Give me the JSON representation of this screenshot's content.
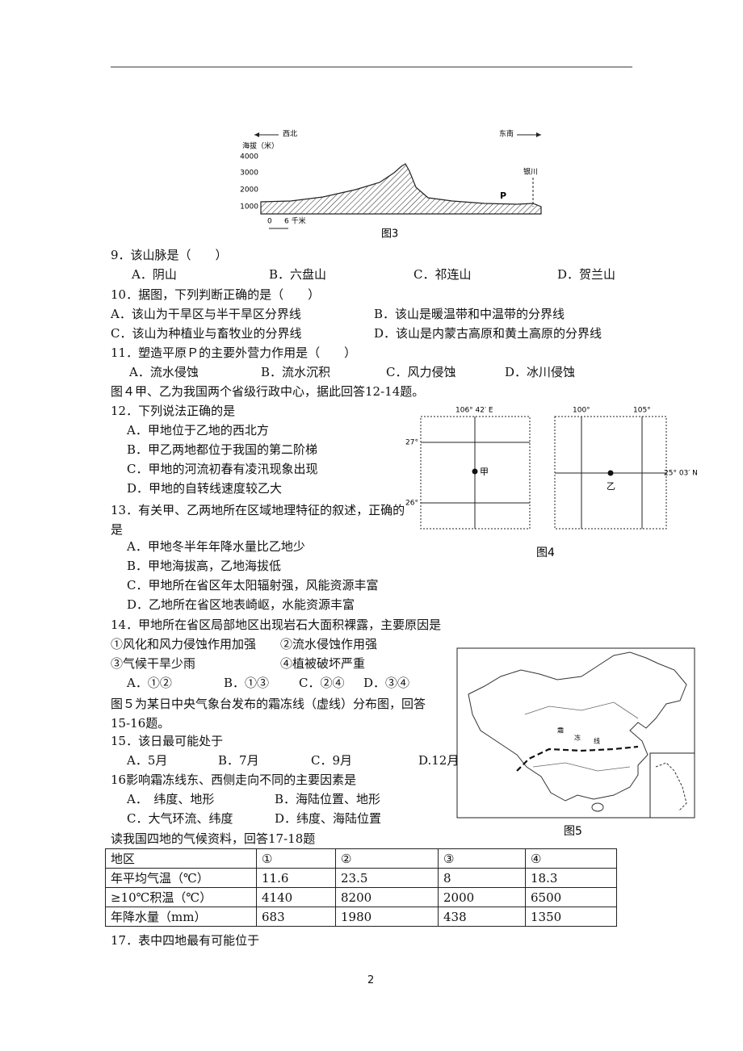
{
  "figure3": {
    "direction_left": "西北",
    "direction_right": "东南",
    "y_axis_label": "海拔（米）",
    "y_ticks": [
      "4000",
      "3000",
      "2000",
      "1000"
    ],
    "city_label": "银川",
    "plain_label": "P",
    "scale_start": "0",
    "scale_end": "6 千米",
    "caption": "图3"
  },
  "questions": [
    {
      "stem": "9．该山脉是（　　）",
      "options": [
        "A．阴山",
        "B．六盘山",
        "C．祁连山",
        "D．贺兰山"
      ]
    },
    {
      "stem": "10．据图，下列判断正确的是（　　）",
      "options": [
        "A．该山为干旱区与半干旱区分界线",
        "B．该山是暖温带和中温带的分界线",
        "C．该山为种植业与畜牧业的分界线",
        "D．该山是内蒙古高原和黄土高原的分界线"
      ]
    },
    {
      "stem": "11．塑造平原Ｐ的主要外营力作用是（　　）",
      "options": [
        "A．流水侵蚀",
        "B．流水沉积",
        "C．风力侵蚀",
        "D．冰川侵蚀"
      ]
    },
    {
      "stem": "12．下列说法正确的是",
      "options": [
        "A．甲地位于乙地的西北方",
        "B．甲乙两地都位于我国的第二阶梯",
        "C．甲地的河流初春有凌汛现象出现",
        "D．甲地的自转线速度较乙大"
      ]
    },
    {
      "stem": "13．有关甲、乙两地所在区域地理特征的叙述，正确的是",
      "options": [
        "A．甲地冬半年年降水量比乙地少",
        "B．甲地海拔高，乙地海拔低",
        "C．甲地所在省区年太阳辐射强，风能资源丰富",
        "D．乙地所在省区地表崎岖，水能资源丰富"
      ]
    },
    {
      "stem": "14．甲地所在省区局部地区出现岩石大面积裸露，主要原因是",
      "statements": [
        "①风化和风力侵蚀作用加强",
        "②流水侵蚀作用强",
        "③气候干旱少雨",
        "④植被破坏严重"
      ],
      "options": [
        "A．①②",
        "B．①③",
        "C．②④",
        "D．③④"
      ]
    },
    {
      "stem": "15．该日最可能处于",
      "options": [
        "A．5月",
        "B．7月",
        "C．9月",
        "D.12月"
      ]
    },
    {
      "stem": "16影响霜冻线东、西侧走向不同的主要因素是",
      "options": [
        "A．　纬度、地形",
        "B．海陆位置、地形",
        "C．大气环流、纬度",
        "D．纬度、海陆位置"
      ]
    },
    {
      "stem": "17．表中四地最有可能位于"
    }
  ],
  "intros": [
    "图４甲、乙为我国两个省级行政中心，据此回答12-14题。",
    "图５为某日中央气象台发布的霜冻线（虚线）分布图，回答15-16题。",
    "读我国四地的气候资料，回答17-18题"
  ],
  "figure4": {
    "left_lon": "106° 42′ E",
    "lat_27": "27°",
    "lat_26": "26°",
    "point_a": "甲",
    "lon_100": "100°",
    "lon_105": "105°",
    "right_lat": "25° 03′ N",
    "point_b": "乙",
    "caption": "图4"
  },
  "figure5": {
    "line_label": [
      "霜",
      "冻",
      "线"
    ],
    "caption": "图5"
  },
  "table": {
    "header": [
      "地区",
      "①",
      "②",
      "③",
      "④"
    ],
    "rows": [
      [
        "年平均气温（℃）",
        "11.6",
        "23.5",
        "8",
        "18.3"
      ],
      [
        "≥10℃积温（℃）",
        "4140",
        "8200",
        "2000",
        "6500"
      ],
      [
        "年降水量（mm）",
        "683",
        "1980",
        "438",
        "1350"
      ]
    ]
  },
  "page_number": "2"
}
